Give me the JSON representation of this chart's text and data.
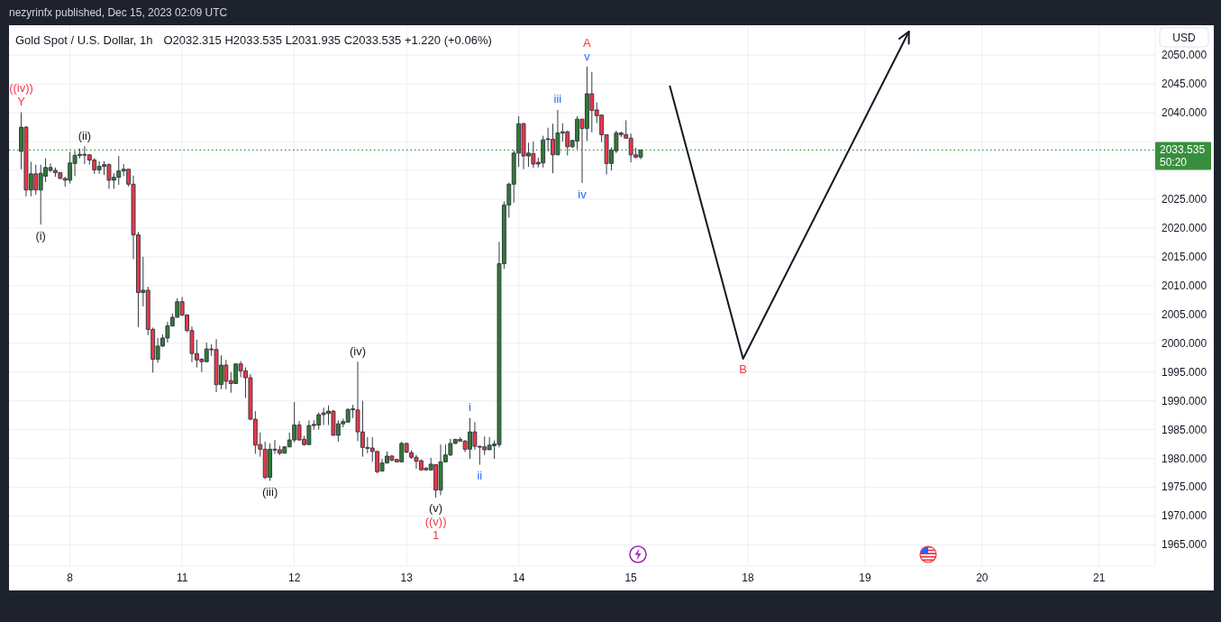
{
  "chart_data": {
    "type": "candlestick",
    "title": "Gold Spot / U.S. Dollar, 1h",
    "subtitle": "O2032.315 H2033.535 L2031.935 C2033.535 +1.220 (+0.06%)",
    "ylabel": "USD",
    "categories": [
      null,
      null,
      null,
      null,
      null,
      null,
      null,
      null,
      null,
      null,
      null,
      null,
      "8",
      null,
      null,
      null,
      null,
      null,
      null,
      null,
      null,
      null,
      null,
      null,
      null,
      null,
      null,
      null,
      null,
      null,
      null,
      null,
      null,
      null,
      null,
      "11",
      null,
      null,
      null,
      null,
      null,
      null,
      null,
      null,
      null,
      null,
      null,
      null,
      null,
      null,
      null,
      null,
      null,
      null,
      null,
      null,
      null,
      null,
      "12",
      null,
      null,
      null,
      null,
      null,
      null,
      null,
      null,
      null,
      null,
      null,
      null,
      null,
      null,
      null,
      null,
      null,
      null,
      null,
      null,
      null,
      null,
      "13",
      null,
      null,
      null,
      null,
      null,
      null,
      null,
      null,
      null,
      null,
      null,
      null,
      null,
      null,
      null,
      null,
      null,
      null,
      null,
      null,
      null,
      null,
      "14",
      null,
      null,
      null,
      null,
      null,
      null,
      null,
      null,
      null,
      null,
      null,
      null,
      null,
      null,
      null,
      null,
      null,
      null,
      null,
      null,
      null,
      null,
      "15",
      null,
      null,
      null,
      null,
      null,
      null,
      null,
      null,
      null,
      null,
      null,
      null,
      null,
      null,
      null,
      null,
      null,
      null,
      null,
      null,
      null,
      null,
      null,
      "18",
      null,
      null,
      null,
      null,
      null,
      null,
      null,
      null,
      null,
      null,
      null,
      null,
      null,
      null,
      null,
      null,
      null,
      null,
      null,
      null,
      null,
      null,
      null,
      "19",
      null,
      null,
      null,
      null,
      null,
      null,
      null,
      null,
      null,
      null,
      null,
      null,
      null,
      null,
      null,
      null,
      null,
      null,
      null,
      null,
      null,
      null,
      null,
      "20",
      null,
      null,
      null,
      null,
      null,
      null,
      null,
      null,
      null,
      null,
      null,
      null,
      null,
      null,
      null,
      null,
      null,
      null,
      null,
      null,
      null,
      null,
      null,
      "21",
      null,
      null,
      null,
      null,
      null,
      null,
      null,
      null,
      null,
      null,
      null
    ],
    "series": [
      {
        "ohlc": [
          null,
          null,
          [
            2033.3,
            2040.1,
            2030.2,
            2037.5
          ],
          [
            2037.5,
            2037.7,
            2025.5,
            2026.6
          ],
          [
            2026.6,
            2031.5,
            2025.5,
            2029.4
          ],
          [
            2029.4,
            2031.0,
            2025.8,
            2026.6
          ],
          [
            2026.6,
            2031.0,
            2020.6,
            2029.5
          ],
          [
            2029.0,
            2032.1,
            2028.0,
            2030.5
          ],
          [
            2030.0,
            2031.2,
            2029.7,
            2030.5
          ],
          [
            2030.0,
            2030.5,
            2028.9,
            2029.6
          ],
          [
            2029.6,
            2029.7,
            2028.5,
            2028.6
          ],
          [
            2028.6,
            2028.9,
            2027.2,
            2028.3
          ],
          [
            2028.3,
            2033.2,
            2027.7,
            2031.3
          ],
          [
            2031.2,
            2033.4,
            2029.0,
            2032.6
          ],
          [
            2032.6,
            2033.8,
            2032.1,
            2032.8
          ],
          [
            2032.8,
            2034.2,
            2031.1,
            2032.7
          ],
          [
            2032.7,
            2032.8,
            2031.0,
            2031.8
          ],
          [
            2031.8,
            2032.1,
            2029.4,
            2030.1
          ],
          [
            2030.1,
            2031.6,
            2029.4,
            2030.7
          ],
          [
            2030.7,
            2031.6,
            2029.2,
            2031.0
          ],
          [
            2031.0,
            2031.2,
            2026.8,
            2028.3
          ],
          [
            2028.3,
            2029.5,
            2026.8,
            2028.8
          ],
          [
            2028.8,
            2032.5,
            2027.5,
            2029.9
          ],
          [
            2029.9,
            2031.1,
            2029.0,
            2030.2
          ],
          [
            2030.2,
            2030.2,
            2027.2,
            2027.6
          ],
          [
            2027.6,
            2029.1,
            2014.6,
            2018.8
          ],
          [
            2018.8,
            2019.3,
            2002.8,
            2008.8
          ],
          [
            2008.8,
            2015.0,
            2006.4,
            2009.2
          ],
          [
            2009.2,
            2009.8,
            2001.4,
            2002.4
          ],
          [
            2002.4,
            2002.7,
            1994.9,
            1997.2
          ],
          [
            1997.2,
            2000.9,
            1996.6,
            1999.5
          ],
          [
            1999.5,
            2001.5,
            1999.4,
            2000.9
          ],
          [
            2000.9,
            2003.7,
            2000.1,
            2003.0
          ],
          [
            2003.0,
            2005.2,
            2002.9,
            2004.5
          ],
          [
            2004.5,
            2007.8,
            2004.5,
            2007.2
          ],
          [
            2007.2,
            2008.0,
            2004.7,
            2004.9
          ],
          [
            2004.9,
            2005.0,
            2001.9,
            2002.2
          ],
          [
            2002.2,
            2002.9,
            1996.7,
            1998.2
          ],
          [
            1998.2,
            2000.6,
            1995.8,
            1997.1
          ],
          [
            1997.2,
            1997.4,
            1995.0,
            1996.8
          ],
          [
            1996.8,
            2000.1,
            1996.7,
            1999.0
          ],
          [
            1999.0,
            1999.8,
            1997.8,
            1998.9
          ],
          [
            1998.9,
            2000.7,
            1991.5,
            1992.8
          ],
          [
            1992.8,
            1997.9,
            1992.0,
            1996.2
          ],
          [
            1996.2,
            1997.1,
            1992.0,
            1993.4
          ],
          [
            1993.5,
            1995.0,
            1991.4,
            1993.0
          ],
          [
            1993.0,
            1996.5,
            1993.0,
            1996.4
          ],
          [
            1996.4,
            1996.9,
            1994.1,
            1995.2
          ],
          [
            1995.2,
            1995.8,
            1990.5,
            1994.0
          ],
          [
            1994.0,
            1994.6,
            1986.7,
            1986.8
          ],
          [
            1986.8,
            1988.2,
            1980.8,
            1982.3
          ],
          [
            1982.4,
            1984.5,
            1980.3,
            1981.6
          ],
          [
            1981.6,
            1982.9,
            1976.4,
            1976.7
          ],
          [
            1976.7,
            1982.6,
            1976.1,
            1981.6
          ],
          [
            1981.6,
            1983.2,
            1980.8,
            1981.5
          ],
          [
            1981.5,
            1982.2,
            1980.6,
            1980.9
          ],
          [
            1980.9,
            1982.1,
            1980.9,
            1982.0
          ],
          [
            1982.0,
            1984.5,
            1982.0,
            1983.2
          ],
          [
            1983.2,
            1989.8,
            1982.8,
            1985.8
          ],
          [
            1985.8,
            1986.5,
            1983.1,
            1983.2
          ],
          [
            1983.3,
            1983.9,
            1982.2,
            1982.4
          ],
          [
            1982.4,
            1986.6,
            1982.4,
            1985.7
          ],
          [
            1985.7,
            1986.6,
            1985.0,
            1985.9
          ],
          [
            1985.8,
            1988.0,
            1985.0,
            1987.6
          ],
          [
            1987.9,
            1988.8,
            1985.8,
            1987.6
          ],
          [
            1987.8,
            1989.2,
            1985.8,
            1988.2
          ],
          [
            1988.2,
            1988.4,
            1984.0,
            1984.0
          ],
          [
            1984.0,
            1986.6,
            1982.9,
            1986.0
          ],
          [
            1986.0,
            1986.9,
            1985.4,
            1986.4
          ],
          [
            1986.3,
            1988.7,
            1986.2,
            1988.5
          ],
          [
            1988.5,
            1989.3,
            1987.0,
            1988.6
          ],
          [
            1988.4,
            1996.8,
            1983.0,
            1984.6
          ],
          [
            1984.6,
            1990.0,
            1980.3,
            1981.9
          ],
          [
            1981.9,
            1983.7,
            1980.9,
            1981.8
          ],
          [
            1981.8,
            1983.7,
            1979.4,
            1981.2
          ],
          [
            1981.2,
            1981.2,
            1977.4,
            1977.7
          ],
          [
            1977.8,
            1979.9,
            1977.8,
            1979.2
          ],
          [
            1979.2,
            1981.2,
            1979.1,
            1980.4
          ],
          [
            1980.4,
            1980.6,
            1979.5,
            1979.7
          ],
          [
            1979.8,
            1979.9,
            1979.3,
            1979.4
          ],
          [
            1979.4,
            1982.9,
            1979.4,
            1982.6
          ],
          [
            1982.6,
            1982.7,
            1980.9,
            1981.1
          ],
          [
            1981.0,
            1981.4,
            1979.9,
            1980.2
          ],
          [
            1980.2,
            1980.6,
            1978.2,
            1979.5
          ],
          [
            1979.6,
            1979.8,
            1977.9,
            1978.0
          ],
          [
            1978.3,
            1978.5,
            1977.9,
            1978.0
          ],
          [
            1978.0,
            1980.1,
            1978.0,
            1979.0
          ],
          [
            1978.9,
            1979.0,
            1973.2,
            1974.5
          ],
          [
            1974.5,
            1982.4,
            1973.6,
            1979.4
          ],
          [
            1979.4,
            1982.4,
            1979.4,
            1980.6
          ],
          [
            1980.6,
            1983.4,
            1980.4,
            1982.6
          ],
          [
            1982.6,
            1983.4,
            1982.5,
            1983.3
          ],
          [
            1983.3,
            1983.7,
            1982.9,
            1983.0
          ],
          [
            1983.0,
            1983.2,
            1981.1,
            1981.6
          ],
          [
            1981.6,
            1987.0,
            1979.9,
            1984.6
          ],
          [
            1984.6,
            1986.3,
            1981.5,
            1982.1
          ],
          [
            1982.1,
            1982.2,
            1978.9,
            1982.0
          ],
          [
            1982.0,
            1983.8,
            1980.6,
            1981.5
          ],
          [
            1981.5,
            1983.7,
            1981.5,
            1982.3
          ],
          [
            1982.2,
            1983.1,
            1979.9,
            1982.5
          ],
          [
            1982.4,
            2017.6,
            1981.9,
            2013.8
          ],
          [
            2013.8,
            2024.6,
            2012.9,
            2024.0
          ],
          [
            2024.0,
            2027.9,
            2021.8,
            2027.6
          ],
          [
            2027.6,
            2033.5,
            2024.4,
            2033.0
          ],
          [
            2033.0,
            2039.4,
            2030.6,
            2038.1
          ],
          [
            2038.1,
            2038.3,
            2030.2,
            2032.5
          ],
          [
            2032.5,
            2034.8,
            2030.6,
            2033.0
          ],
          [
            2032.9,
            2035.0,
            2030.4,
            2031.1
          ],
          [
            2031.4,
            2032.2,
            2030.5,
            2031.1
          ],
          [
            2031.3,
            2036.0,
            2030.5,
            2035.3
          ],
          [
            2035.5,
            2037.4,
            2033.3,
            2035.4
          ],
          [
            2035.4,
            2038.1,
            2029.5,
            2032.7
          ],
          [
            2032.7,
            2040.5,
            2032.7,
            2036.5
          ],
          [
            2036.5,
            2038.2,
            2035.0,
            2036.7
          ],
          [
            2036.7,
            2036.9,
            2032.6,
            2034.1
          ],
          [
            2034.1,
            2035.3,
            2033.9,
            2035.2
          ],
          [
            2035.1,
            2039.4,
            2033.7,
            2038.9
          ],
          [
            2038.9,
            2038.9,
            2027.8,
            2037.3
          ],
          [
            2037.3,
            2048.0,
            2035.1,
            2043.3
          ],
          [
            2043.3,
            2047.1,
            2036.6,
            2040.4
          ],
          [
            2040.5,
            2041.8,
            2038.2,
            2039.5
          ],
          [
            2039.6,
            2039.7,
            2034.9,
            2036.2
          ],
          [
            2036.2,
            2036.2,
            2029.3,
            2031.2
          ],
          [
            2031.2,
            2034.0,
            2030.0,
            2033.5
          ],
          [
            2033.4,
            2036.9,
            2033.0,
            2036.5
          ],
          [
            2036.5,
            2036.7,
            2035.8,
            2036.2
          ],
          [
            2036.2,
            2038.7,
            2035.5,
            2035.6
          ],
          [
            2035.6,
            2036.4,
            2031.4,
            2032.7
          ],
          [
            2032.7,
            2033.9,
            2032.1,
            2032.3
          ],
          [
            2032.315,
            2033.535,
            2031.935,
            2033.535
          ],
          null,
          null,
          null,
          null,
          null,
          null,
          null,
          null,
          null,
          null,
          null,
          null,
          null,
          null,
          null,
          null,
          null,
          null,
          null,
          null,
          null,
          null,
          null,
          null,
          null,
          null,
          null,
          null,
          null,
          null,
          null,
          null,
          null,
          null,
          null,
          null,
          null,
          null,
          null,
          null,
          null,
          null,
          null,
          null,
          null,
          null,
          null,
          null,
          null,
          null,
          null,
          null,
          null,
          null,
          null,
          null,
          null,
          null,
          null,
          null,
          null,
          null,
          null,
          null,
          null,
          null,
          null,
          null,
          null,
          null,
          null,
          null,
          null,
          null,
          null,
          null,
          null,
          null,
          null,
          null,
          null,
          null,
          null,
          null,
          null,
          null,
          null,
          null,
          null,
          null,
          null,
          null,
          null,
          null,
          null,
          null,
          null,
          null,
          null,
          null,
          null,
          null,
          null,
          null,
          null
        ],
        "colors": [
          null,
          null,
          "#2e7d32",
          "#f23645",
          "#2e7d32",
          "#f23645",
          "#2e7d32",
          "#2e7d32",
          "#2e7d32",
          "#f23645",
          "#f23645",
          "#f23645",
          "#2e7d32",
          "#2e7d32",
          "#2e7d32",
          "#f23645",
          "#f23645",
          "#f23645",
          "#2e7d32",
          "#2e7d32",
          "#f23645",
          "#2e7d32",
          "#2e7d32",
          "#2e7d32",
          "#f23645",
          "#f23645",
          "#f23645",
          "#2e7d32",
          "#f23645",
          "#f23645",
          "#2e7d32",
          "#2e7d32",
          "#2e7d32",
          "#2e7d32",
          "#2e7d32",
          "#f23645",
          "#f23645",
          "#f23645",
          "#f23645",
          "#f23645",
          "#2e7d32",
          "#f23645",
          "#f23645",
          "#2e7d32",
          "#f23645",
          "#f23645",
          "#2e7d32",
          "#f23645",
          "#f23645",
          "#f23645",
          "#f23645",
          "#f23645",
          "#f23645",
          "#2e7d32",
          "#f23645",
          "#f23645",
          "#2e7d32",
          "#2e7d32",
          "#2e7d32",
          "#f23645",
          "#f23645",
          "#2e7d32",
          "#2e7d32",
          "#2e7d32",
          "#f23645",
          "#2e7d32",
          "#f23645",
          "#2e7d32",
          "#2e7d32",
          "#2e7d32",
          "#2e7d32",
          "#f23645",
          "#f23645",
          "#f23645",
          "#f23645",
          "#f23645",
          "#2e7d32",
          "#2e7d32",
          "#f23645",
          "#f23645",
          "#2e7d32",
          "#f23645",
          "#f23645",
          "#f23645",
          "#f23645",
          "#f23645",
          "#2e7d32",
          "#f23645",
          "#2e7d32",
          "#2e7d32",
          "#2e7d32",
          "#2e7d32",
          "#f23645",
          "#f23645",
          "#2e7d32",
          "#f23645",
          "#f23645",
          "#f23645",
          "#2e7d32",
          "#2e7d32",
          "#2e7d32",
          "#2e7d32",
          "#2e7d32",
          "#2e7d32",
          "#2e7d32",
          "#f23645",
          "#2e7d32",
          "#f23645",
          "#f23645",
          "#2e7d32",
          "#f23645",
          "#f23645",
          "#2e7d32",
          "#2e7d32",
          "#f23645",
          "#2e7d32",
          "#2e7d32",
          "#f23645",
          "#2e7d32",
          "#f23645",
          "#f23645",
          "#f23645",
          "#f23645",
          "#2e7d32",
          "#2e7d32",
          "#f23645",
          "#f23645",
          "#f23645",
          "#f23645",
          "#2e7d32",
          null,
          null,
          null,
          null,
          null,
          null,
          null,
          null,
          null,
          null,
          null,
          null,
          null,
          null,
          null,
          null,
          null,
          null,
          null,
          null,
          null,
          null,
          null,
          null,
          null,
          null,
          null,
          null,
          null,
          null,
          null,
          null,
          null,
          null,
          null,
          null,
          null,
          null,
          null,
          null,
          null,
          null,
          null,
          null,
          null,
          null,
          null,
          null,
          null,
          null,
          null,
          null,
          null,
          null,
          null,
          null,
          null,
          null,
          null,
          null,
          null,
          null,
          null,
          null,
          null,
          null,
          null,
          null,
          null,
          null,
          null,
          null,
          null,
          null,
          null,
          null,
          null,
          null,
          null,
          null,
          null,
          null,
          null,
          null,
          null,
          null,
          null,
          null,
          null,
          null,
          null,
          null,
          null,
          null,
          null,
          null,
          null,
          null,
          null,
          null,
          null,
          null,
          null,
          null,
          null
        ]
      },
      {
        "type": "line",
        "color": "#131722",
        "values": [
          null,
          null,
          null,
          null,
          null,
          null,
          null,
          null,
          null,
          null,
          null,
          null,
          null,
          null,
          null,
          null,
          null,
          null,
          null,
          null,
          null,
          null,
          null,
          null,
          null,
          null,
          null,
          null,
          null,
          null,
          null,
          null,
          null,
          null,
          null,
          null,
          null,
          null,
          null,
          null,
          null,
          null,
          null,
          null,
          null,
          null,
          null,
          null,
          null,
          null,
          null,
          null,
          null,
          null,
          null,
          null,
          null,
          null,
          null,
          null,
          null,
          null,
          null,
          null,
          null,
          null,
          null,
          null,
          null,
          null,
          null,
          null,
          null,
          null,
          null,
          null,
          null,
          null,
          null,
          null,
          null,
          null,
          null,
          null,
          null,
          null,
          null,
          null,
          null,
          null,
          null,
          null,
          null,
          null,
          null,
          null,
          null,
          null,
          null,
          null,
          null,
          null,
          null,
          null,
          null,
          null,
          null,
          null,
          null,
          null,
          null,
          null,
          null,
          null,
          null,
          null,
          null,
          null,
          null,
          null,
          null,
          null,
          null,
          null,
          null,
          null,
          null,
          null,
          null,
          null,
          null,
          null,
          null,
          null,
          null,
          2044.6,
          null,
          null,
          null,
          null,
          null,
          null,
          null,
          null,
          null,
          null,
          null,
          null,
          null,
          null,
          1997.3,
          null,
          null,
          null,
          null,
          null,
          null,
          null,
          null,
          null,
          null,
          null,
          null,
          null,
          null,
          null,
          null,
          null,
          null,
          null,
          null,
          null,
          null,
          null,
          null,
          null,
          null,
          null,
          null,
          null,
          null,
          null,
          null,
          null,
          2054.1,
          null,
          null,
          null,
          null,
          null,
          null,
          null,
          null,
          null,
          null,
          null,
          null,
          null,
          null,
          null,
          null,
          null,
          null,
          null,
          null,
          null,
          null,
          null,
          null,
          null,
          null,
          null,
          null,
          null,
          null,
          null,
          null,
          null,
          null,
          null,
          null,
          null,
          null,
          null,
          null,
          null,
          null,
          null,
          null,
          null,
          null,
          null,
          null,
          null,
          null
        ]
      }
    ],
    "ylim": [
      1961.3,
      2055.2
    ],
    "yticks": [
      {
        "value": 1965,
        "label": "1965.000"
      },
      {
        "value": 1970,
        "label": "1970.000"
      },
      {
        "value": 1975,
        "label": "1975.000"
      },
      {
        "value": 1980,
        "label": "1980.000"
      },
      {
        "value": 1985,
        "label": "1985.000"
      },
      {
        "value": 1990,
        "label": "1990.000"
      },
      {
        "value": 1995,
        "label": "1995.000"
      },
      {
        "value": 2000,
        "label": "2000.000"
      },
      {
        "value": 2005,
        "label": "2005.000"
      },
      {
        "value": 2010,
        "label": "2010.000"
      },
      {
        "value": 2015,
        "label": "2015.000"
      },
      {
        "value": 2020,
        "label": "2020.000"
      },
      {
        "value": 2025,
        "label": "2025.000"
      },
      {
        "value": 2030,
        "label": null
      },
      {
        "value": 2035,
        "label": null
      },
      {
        "value": 2040,
        "label": "2040.000"
      },
      {
        "value": 2045,
        "label": "2045.000"
      },
      {
        "value": 2050,
        "label": "2050.000"
      }
    ],
    "grid": true,
    "ref_lines": [
      {
        "axis": "y",
        "value": 2033.535,
        "label": "2033.535",
        "color": "#388e3c",
        "line_style": "dotted"
      }
    ],
    "annotations": [
      "nezyrinfx published, Dec 15, 2023 02:09 UTC",
      "50:20",
      {
        "text": "Y",
        "y": 2040.1
      },
      {
        "text": "((iv))",
        "y": 2040.1
      },
      {
        "text": "(ii)",
        "y": 2034.2
      },
      {
        "text": "(i)",
        "y": 2020.6
      },
      {
        "text": "(iii)",
        "y": 1976.1
      },
      {
        "text": "(iv)",
        "y": 1996.8
      },
      {
        "text": "(v)",
        "y": 1973.2
      },
      {
        "text": "((v))",
        "y": 1973.2
      },
      {
        "text": "1",
        "y": 1973.2
      },
      {
        "text": "i",
        "y": 1987.0
      },
      {
        "text": "ii",
        "y": 1978.9
      },
      {
        "text": "iii",
        "y": 2040.5
      },
      {
        "text": "iv",
        "y": 2027.8
      },
      {
        "text": "v",
        "y": 2048.0
      },
      {
        "text": "A",
        "y": 2048.0
      },
      {
        "text": "B",
        "y": 1997.3
      }
    ]
  }
}
